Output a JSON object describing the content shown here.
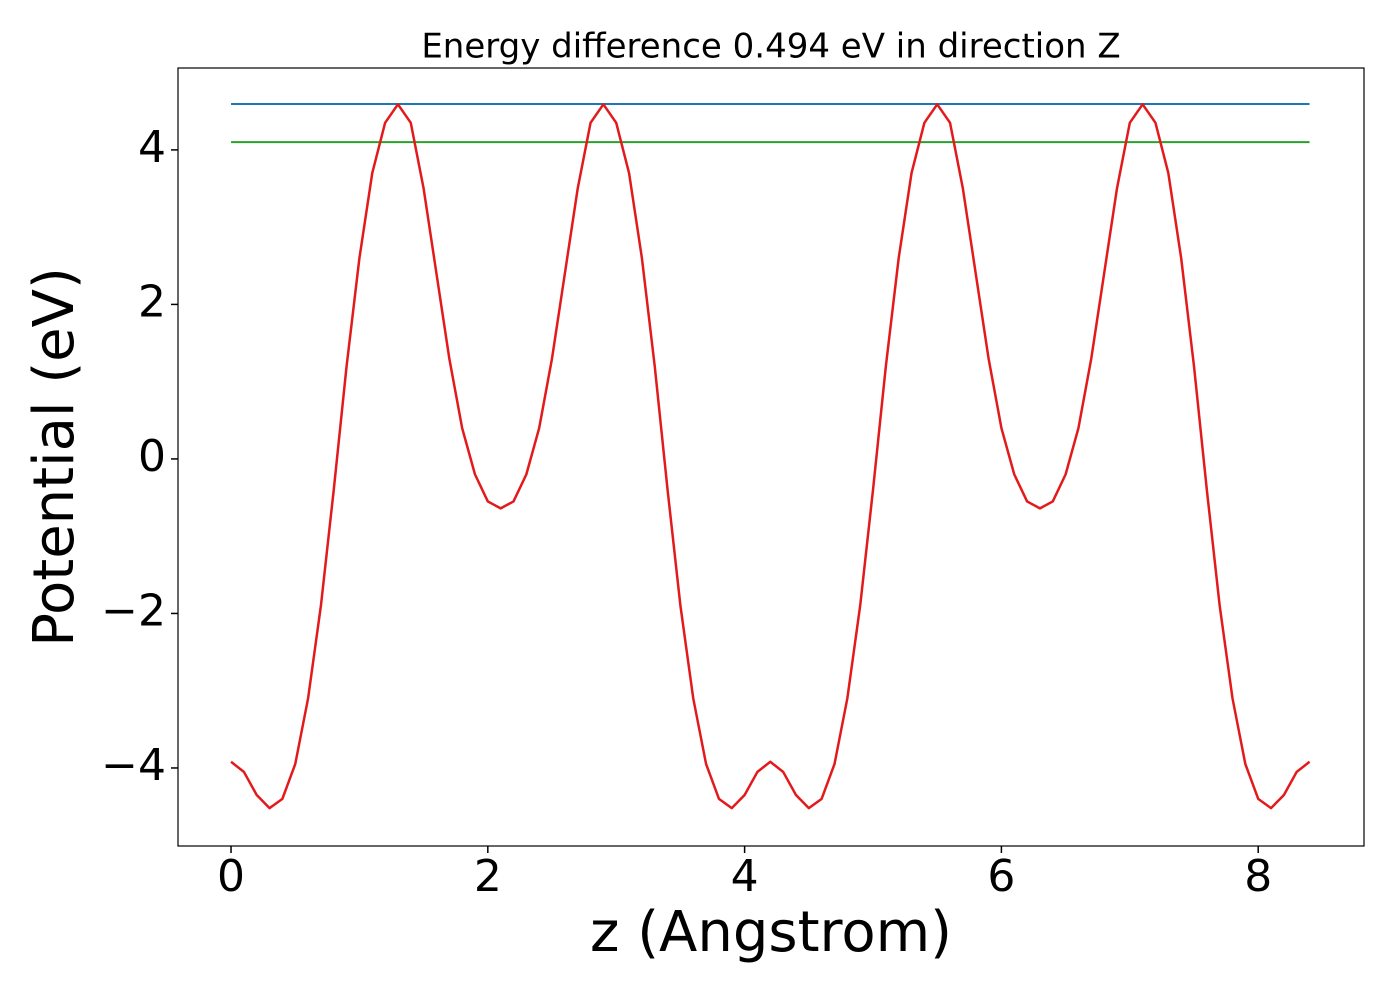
{
  "chart_data": {
    "type": "line",
    "title": "Energy difference 0.494 eV in direction Z",
    "xlabel": "z (Angstrom)",
    "ylabel": "Potential (eV)",
    "x": [
      0,
      0.1,
      0.2,
      0.3,
      0.4,
      0.5,
      0.6,
      0.7,
      0.8,
      0.9,
      1.0,
      1.1,
      1.2,
      1.3,
      1.4,
      1.5,
      1.6,
      1.7,
      1.8,
      1.9,
      2.0,
      2.1,
      2.2,
      2.3,
      2.4,
      2.5,
      2.6,
      2.7,
      2.8,
      2.9,
      3.0,
      3.1,
      3.2,
      3.3,
      3.4,
      3.5,
      3.6,
      3.7,
      3.8,
      3.9,
      4.0,
      4.1,
      4.2,
      4.3,
      4.4,
      4.5,
      4.6,
      4.7,
      4.8,
      4.9,
      5.0,
      5.1,
      5.2,
      5.3,
      5.4,
      5.5,
      5.6,
      5.7,
      5.8,
      5.9,
      6.0,
      6.1,
      6.2,
      6.3,
      6.4,
      6.5,
      6.6,
      6.7,
      6.8,
      6.9,
      7.0,
      7.1,
      7.2,
      7.3,
      7.4,
      7.5,
      7.6,
      7.7,
      7.8,
      7.9,
      8.0,
      8.1,
      8.2,
      8.3,
      8.4
    ],
    "series": [
      {
        "color": "#e31a1c",
        "values": [
          -3.92,
          -4.05,
          -4.35,
          -4.52,
          -4.4,
          -3.95,
          -3.1,
          -1.9,
          -0.4,
          1.2,
          2.6,
          3.7,
          4.35,
          4.59,
          4.35,
          3.5,
          2.4,
          1.3,
          0.4,
          -0.2,
          -0.55,
          -0.64,
          -0.55,
          -0.2,
          0.4,
          1.3,
          2.4,
          3.5,
          4.35,
          4.59,
          4.35,
          3.7,
          2.6,
          1.2,
          -0.4,
          -1.9,
          -3.1,
          -3.95,
          -4.4,
          -4.52,
          -4.35,
          -4.05,
          -3.92,
          -4.05,
          -4.35,
          -4.52,
          -4.4,
          -3.95,
          -3.1,
          -1.9,
          -0.4,
          1.2,
          2.6,
          3.7,
          4.35,
          4.59,
          4.35,
          3.5,
          2.4,
          1.3,
          0.4,
          -0.2,
          -0.55,
          -0.64,
          -0.55,
          -0.2,
          0.4,
          1.3,
          2.4,
          3.5,
          4.35,
          4.59,
          4.35,
          3.7,
          2.6,
          1.2,
          -0.4,
          -1.9,
          -3.1,
          -3.95,
          -4.4,
          -4.52,
          -4.35,
          -4.05,
          -3.92
        ]
      }
    ],
    "hlines": [
      {
        "value": 4.594,
        "color": "#1f77b4"
      },
      {
        "value": 4.1,
        "color": "#2ca02c"
      }
    ],
    "xlim": [
      -0.413,
      8.824
    ],
    "ylim": [
      -5.01,
      5.06
    ],
    "xticks": [
      0,
      2,
      4,
      6,
      8
    ],
    "yticks": [
      {
        "value": -4,
        "label": "−4"
      },
      {
        "value": -2,
        "label": "−2"
      },
      0,
      2,
      4
    ]
  }
}
